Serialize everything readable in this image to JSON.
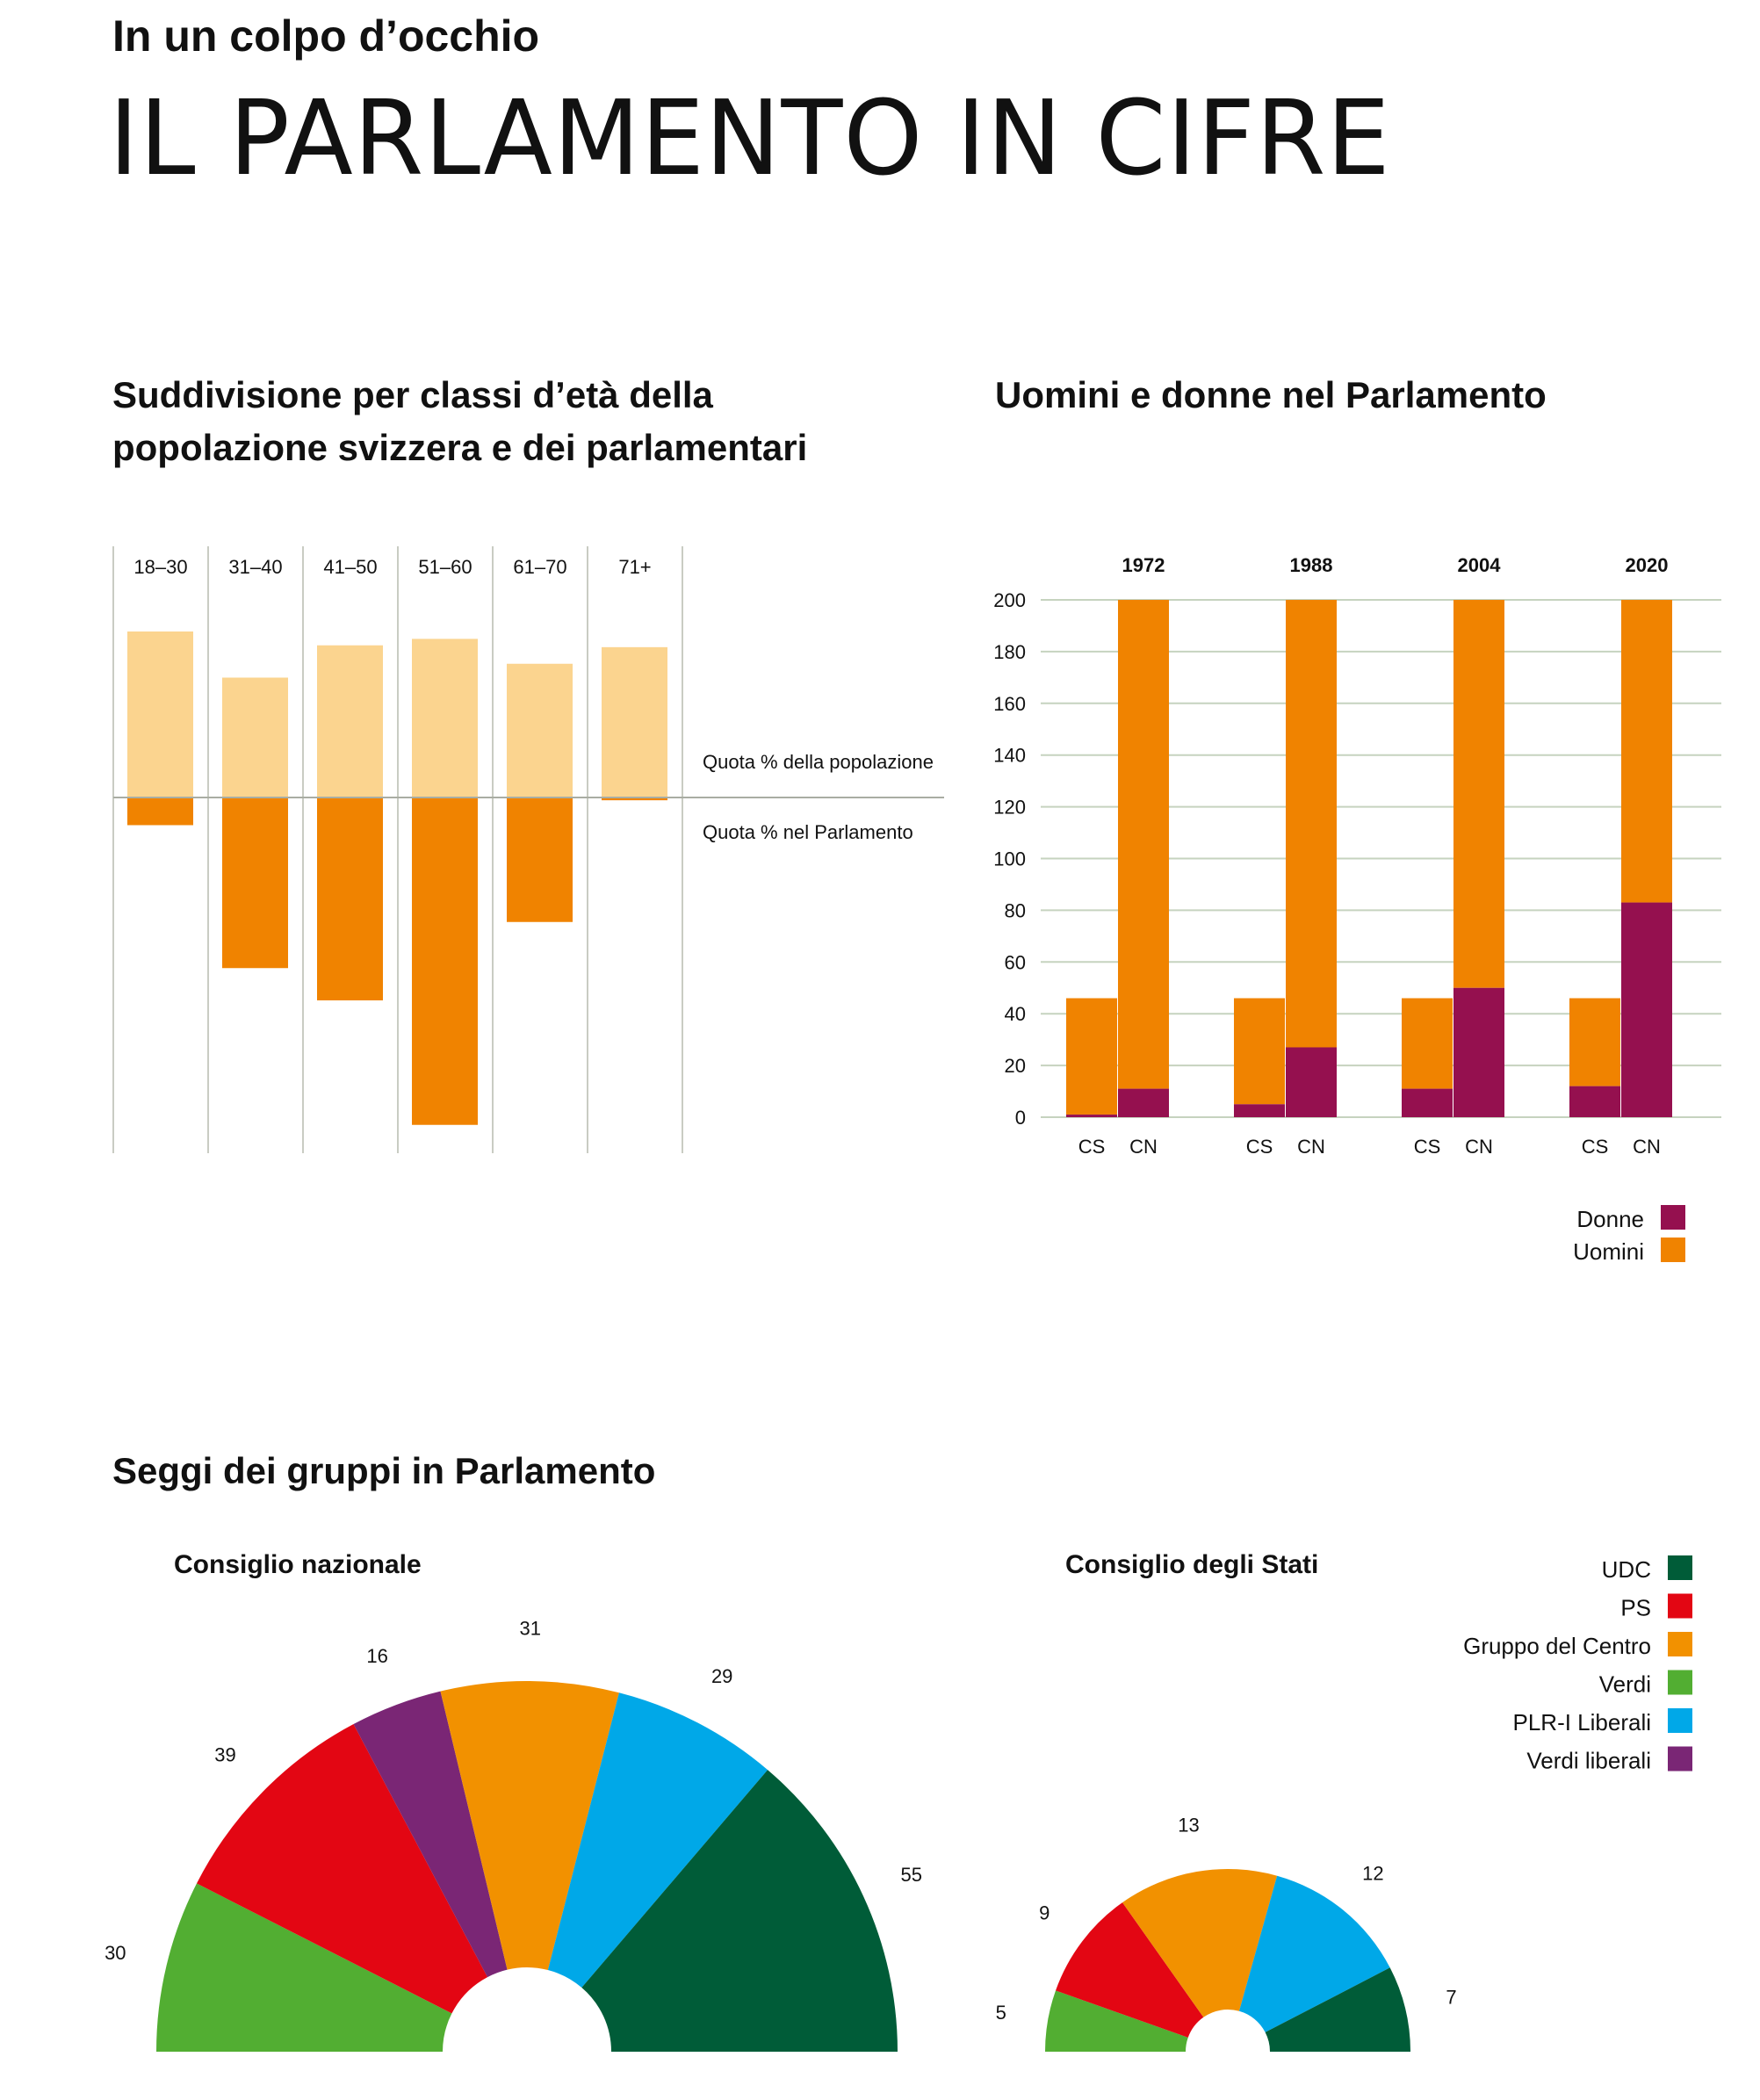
{
  "header": {
    "kicker": "In un colpo d’occhio",
    "title": "IL PARLAMENTO IN CIFRE"
  },
  "chart_data": [
    {
      "id": "age",
      "type": "bar",
      "title_line1": "Suddivisione per classi d’età della",
      "title_line2": "popolazione svizzera e dei parlamentari",
      "categories": [
        "18–30",
        "31–40",
        "41–50",
        "51–60",
        "61–70",
        "71+"
      ],
      "series": [
        {
          "name": "Quota % della popolazione",
          "values": [
            18,
            13,
            16.5,
            17.2,
            14.5,
            16.3
          ],
          "color": "#fbd48f"
        },
        {
          "name": "Quota % nel Parlamento",
          "values": [
            3,
            18.5,
            22,
            35.5,
            13.5,
            0.3
          ],
          "color": "#f08300"
        }
      ],
      "legend": [
        "Quota % della popolazione",
        "Quota % nel Parlamento"
      ]
    },
    {
      "id": "gender",
      "type": "bar",
      "stacked": true,
      "title": "Uomini e donne nel Parlamento",
      "groups": [
        "1972",
        "1988",
        "2004",
        "2020"
      ],
      "x_labels": [
        "CS",
        "CN"
      ],
      "ylim": [
        0,
        200
      ],
      "yticks": [
        "0",
        "20",
        "40",
        "60",
        "80",
        "100",
        "120",
        "140",
        "160",
        "180",
        "200"
      ],
      "series": [
        {
          "name": "Donne",
          "color": "#95104f",
          "values": {
            "1972": [
              1,
              11
            ],
            "1988": [
              5,
              27
            ],
            "2004": [
              11,
              50
            ],
            "2020": [
              12,
              83
            ]
          }
        },
        {
          "name": "Uomini",
          "color": "#f08300",
          "values": {
            "1972": [
              45,
              189
            ],
            "1988": [
              41,
              173
            ],
            "2004": [
              35,
              150
            ],
            "2020": [
              34,
              117
            ]
          }
        }
      ],
      "legend": [
        "Donne",
        "Uomini"
      ]
    },
    {
      "id": "seats",
      "type": "pie",
      "title": "Seggi dei gruppi in Parlamento",
      "charts": [
        {
          "title": "Consiglio nazionale",
          "values": [
            {
              "party": "Verdi",
              "value": 30,
              "label": "30"
            },
            {
              "party": "PS",
              "value": 39,
              "label": "39"
            },
            {
              "party": "Verdi liberali",
              "value": 16,
              "label": "16"
            },
            {
              "party": "Gruppo del Centro",
              "value": 31,
              "label": "31"
            },
            {
              "party": "PLR-I Liberali",
              "value": 29,
              "label": "29"
            },
            {
              "party": "UDC",
              "value": 55,
              "label": "55"
            }
          ]
        },
        {
          "title": "Consiglio degli Stati",
          "values": [
            {
              "party": "Verdi",
              "value": 5,
              "label": "5"
            },
            {
              "party": "PS",
              "value": 9,
              "label": "9"
            },
            {
              "party": "Gruppo del Centro",
              "value": 13,
              "label": "13"
            },
            {
              "party": "PLR-I Liberali",
              "value": 12,
              "label": "12"
            },
            {
              "party": "UDC",
              "value": 7,
              "label": "7"
            }
          ]
        }
      ],
      "legend": [
        {
          "party": "UDC",
          "color": "#005c38"
        },
        {
          "party": "PS",
          "color": "#e30613"
        },
        {
          "party": "Gruppo del Centro",
          "color": "#f29100"
        },
        {
          "party": "Verdi",
          "color": "#52ae32"
        },
        {
          "party": "PLR-I Liberali",
          "color": "#00a8e8"
        },
        {
          "party": "Verdi liberali",
          "color": "#7a2675"
        }
      ]
    }
  ]
}
